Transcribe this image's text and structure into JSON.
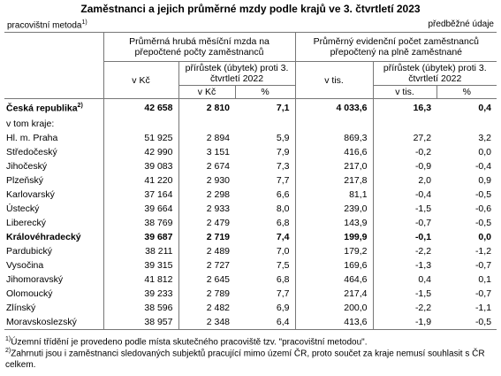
{
  "header": {
    "title": "Zaměstnanci a jejich průměrné mzdy podle krajů ve 3. čtvrtletí 2023",
    "method": "pracovištní metoda",
    "method_note": "1)",
    "status": "předběžné údaje"
  },
  "table": {
    "groups": [
      "Průměrná hrubá měsíční mzda na přepočtené počty zaměstnanců",
      "Průměrný evidenční počet zaměstnanců přepočtený na plně zaměstnané"
    ],
    "subheaders": [
      "v Kč",
      "přírůstek (úbytek) proti 3. čtvrtletí 2022",
      "v tis.",
      "přírůstek (úbytek) proti 3. čtvrtletí 2022"
    ],
    "units": [
      "v Kč",
      "%",
      "v tis.",
      "%"
    ],
    "total": {
      "label": "Česká republika",
      "note": "2)",
      "values": [
        "42 658",
        "2 810",
        "7,1",
        "4 033,6",
        "16,3",
        "0,4"
      ]
    },
    "section_label": "v tom kraje:",
    "rows": [
      {
        "label": "Hl. m. Praha",
        "values": [
          "51 925",
          "2 894",
          "5,9",
          "869,3",
          "27,2",
          "3,2"
        ]
      },
      {
        "label": "Středočeský",
        "values": [
          "42 990",
          "3 151",
          "7,9",
          "416,6",
          "-0,2",
          "0,0"
        ]
      },
      {
        "label": "Jihočeský",
        "values": [
          "39 083",
          "2 674",
          "7,3",
          "217,0",
          "-0,9",
          "-0,4"
        ]
      },
      {
        "label": "Plzeňský",
        "values": [
          "41 220",
          "2 930",
          "7,7",
          "217,8",
          "2,0",
          "0,9"
        ]
      },
      {
        "label": "Karlovarský",
        "values": [
          "37 164",
          "2 298",
          "6,6",
          "81,1",
          "-0,4",
          "-0,5"
        ]
      },
      {
        "label": "Ústecký",
        "values": [
          "39 664",
          "2 933",
          "8,0",
          "239,0",
          "-1,5",
          "-0,6"
        ]
      },
      {
        "label": "Liberecký",
        "values": [
          "38 769",
          "2 479",
          "6,8",
          "143,9",
          "-0,7",
          "-0,5"
        ]
      },
      {
        "label": "Královéhradecký",
        "bold": true,
        "values": [
          "39 687",
          "2 719",
          "7,4",
          "199,9",
          "-0,1",
          "0,0"
        ]
      },
      {
        "label": "Pardubický",
        "values": [
          "38 211",
          "2 489",
          "7,0",
          "179,2",
          "-2,2",
          "-1,2"
        ]
      },
      {
        "label": "Vysočina",
        "values": [
          "39 315",
          "2 727",
          "7,5",
          "169,6",
          "-1,3",
          "-0,7"
        ]
      },
      {
        "label": "Jihomoravský",
        "values": [
          "41 812",
          "2 645",
          "6,8",
          "464,6",
          "0,4",
          "0,1"
        ]
      },
      {
        "label": "Olomoucký",
        "values": [
          "39 233",
          "2 789",
          "7,7",
          "217,4",
          "-1,5",
          "-0,7"
        ]
      },
      {
        "label": "Zlínský",
        "values": [
          "38 596",
          "2 482",
          "6,9",
          "200,0",
          "-2,2",
          "-1,1"
        ]
      },
      {
        "label": "Moravskoslezský",
        "values": [
          "38 957",
          "2 348",
          "6,4",
          "413,6",
          "-1,9",
          "-0,5"
        ]
      }
    ]
  },
  "footnotes": [
    {
      "mark": "1)",
      "text": "Územní třídění je provedeno podle místa skutečného pracoviště tzv. \"pracovištní metodou\"."
    },
    {
      "mark": "2)",
      "text": "Zahrnuti jsou i zaměstnanci sledovaných subjektů pracující mimo území ČR, proto součet za kraje nemusí souhlasit s ČR celkem."
    }
  ]
}
